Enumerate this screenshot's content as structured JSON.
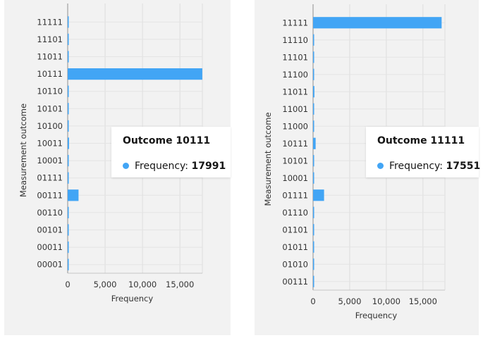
{
  "chart_data": [
    {
      "type": "bar",
      "orientation": "horizontal",
      "ylabel": "Measurement outcome",
      "xlabel": "Frequency",
      "xlim": [
        0,
        18000
      ],
      "xticks": [
        "0",
        "5,000",
        "10,000",
        "15,000"
      ],
      "xtick_values": [
        0,
        5000,
        10000,
        15000
      ],
      "bar_color": "#42a5f5",
      "categories": [
        "11111",
        "11101",
        "11011",
        "10111",
        "10110",
        "10101",
        "10100",
        "10011",
        "10001",
        "01111",
        "00111",
        "00110",
        "00101",
        "00011",
        "00001"
      ],
      "values": [
        30,
        5,
        5,
        17991,
        40,
        60,
        5,
        180,
        5,
        5,
        1450,
        5,
        5,
        5,
        5
      ],
      "tooltip": {
        "title": "Outcome 10111",
        "label": "Frequency:",
        "value": "17991"
      }
    },
    {
      "type": "bar",
      "orientation": "horizontal",
      "ylabel": "Measurement outcome",
      "xlabel": "Frequency",
      "xlim": [
        0,
        18000
      ],
      "xticks": [
        "0",
        "5,000",
        "10,000",
        "15,000"
      ],
      "xtick_values": [
        0,
        5000,
        10000,
        15000
      ],
      "bar_color": "#42a5f5",
      "categories": [
        "11111",
        "11110",
        "11101",
        "11100",
        "11011",
        "11001",
        "11000",
        "10111",
        "10101",
        "10001",
        "01111",
        "01110",
        "01101",
        "01011",
        "01010",
        "00111"
      ],
      "values": [
        17551,
        5,
        40,
        5,
        180,
        5,
        5,
        350,
        5,
        5,
        1500,
        5,
        5,
        5,
        5,
        5
      ],
      "tooltip": {
        "title": "Outcome 11111",
        "label": "Frequency:",
        "value": "17551"
      }
    }
  ]
}
